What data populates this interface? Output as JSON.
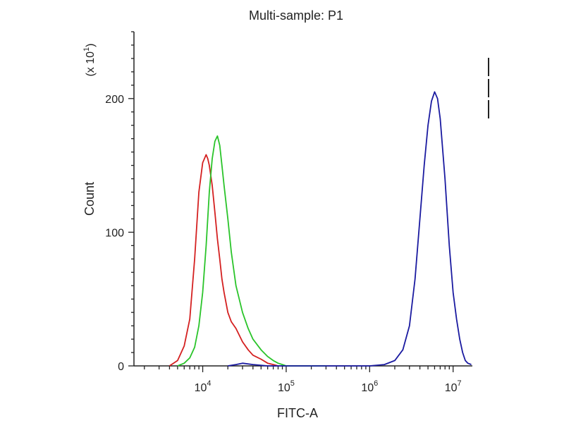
{
  "chart_data": {
    "type": "line",
    "title": "Multi-sample: P1",
    "xlabel": "FITC-A",
    "ylabel": "Count",
    "ylabel_multiplier": {
      "base": "(x 10",
      "exp": "1",
      "close": ")"
    },
    "x_scale": "log",
    "xlim": [
      1500,
      17000000
    ],
    "ylim": [
      0,
      250
    ],
    "x_ticks": [
      {
        "value": 10000,
        "base": "10",
        "exp": "4"
      },
      {
        "value": 100000,
        "base": "10",
        "exp": "5"
      },
      {
        "value": 1000000,
        "base": "10",
        "exp": "6"
      },
      {
        "value": 10000000,
        "base": "10",
        "exp": "7"
      }
    ],
    "y_ticks": [
      {
        "value": 0,
        "label": "0"
      },
      {
        "value": 100,
        "label": "100"
      },
      {
        "value": 200,
        "label": "200"
      }
    ],
    "grid": false,
    "legend": "none",
    "series": [
      {
        "color": "#d42020",
        "x": [
          4000,
          5000,
          6000,
          7000,
          8000,
          9000,
          10000,
          11000,
          11500,
          12000,
          13000,
          14000,
          15000,
          16000,
          17000,
          18000,
          20000,
          22000,
          25000,
          30000,
          35000,
          40000,
          50000,
          60000,
          70000,
          80000
        ],
        "y": [
          0,
          4,
          15,
          35,
          80,
          130,
          152,
          158,
          155,
          150,
          135,
          115,
          95,
          80,
          65,
          55,
          40,
          33,
          28,
          18,
          12,
          8,
          5,
          2,
          1,
          0
        ]
      },
      {
        "color": "#2ac42a",
        "x": [
          5000,
          6000,
          7000,
          8000,
          9000,
          10000,
          11000,
          12000,
          13000,
          14000,
          15000,
          16000,
          17000,
          18000,
          20000,
          22000,
          25000,
          30000,
          35000,
          40000,
          50000,
          60000,
          70000,
          80000,
          90000,
          100000,
          150000,
          300000
        ],
        "y": [
          0,
          2,
          6,
          14,
          30,
          55,
          90,
          130,
          155,
          168,
          172,
          165,
          150,
          135,
          110,
          85,
          60,
          40,
          28,
          20,
          12,
          7,
          4,
          2,
          1,
          0,
          0,
          0
        ]
      },
      {
        "color": "#1a1aa0",
        "x": [
          20000,
          25000,
          30000,
          40000,
          60000,
          1000000,
          1500000,
          2000000,
          2500000,
          3000000,
          3500000,
          4000000,
          4500000,
          5000000,
          5500000,
          6000000,
          6500000,
          7000000,
          8000000,
          9000000,
          10000000,
          11000000,
          12000000,
          13000000,
          14000000,
          15000000,
          16500000
        ],
        "y": [
          0,
          1,
          2,
          1,
          0,
          0,
          1,
          4,
          12,
          30,
          65,
          110,
          150,
          180,
          198,
          205,
          200,
          185,
          140,
          90,
          55,
          35,
          20,
          10,
          4,
          2,
          1
        ]
      }
    ]
  }
}
